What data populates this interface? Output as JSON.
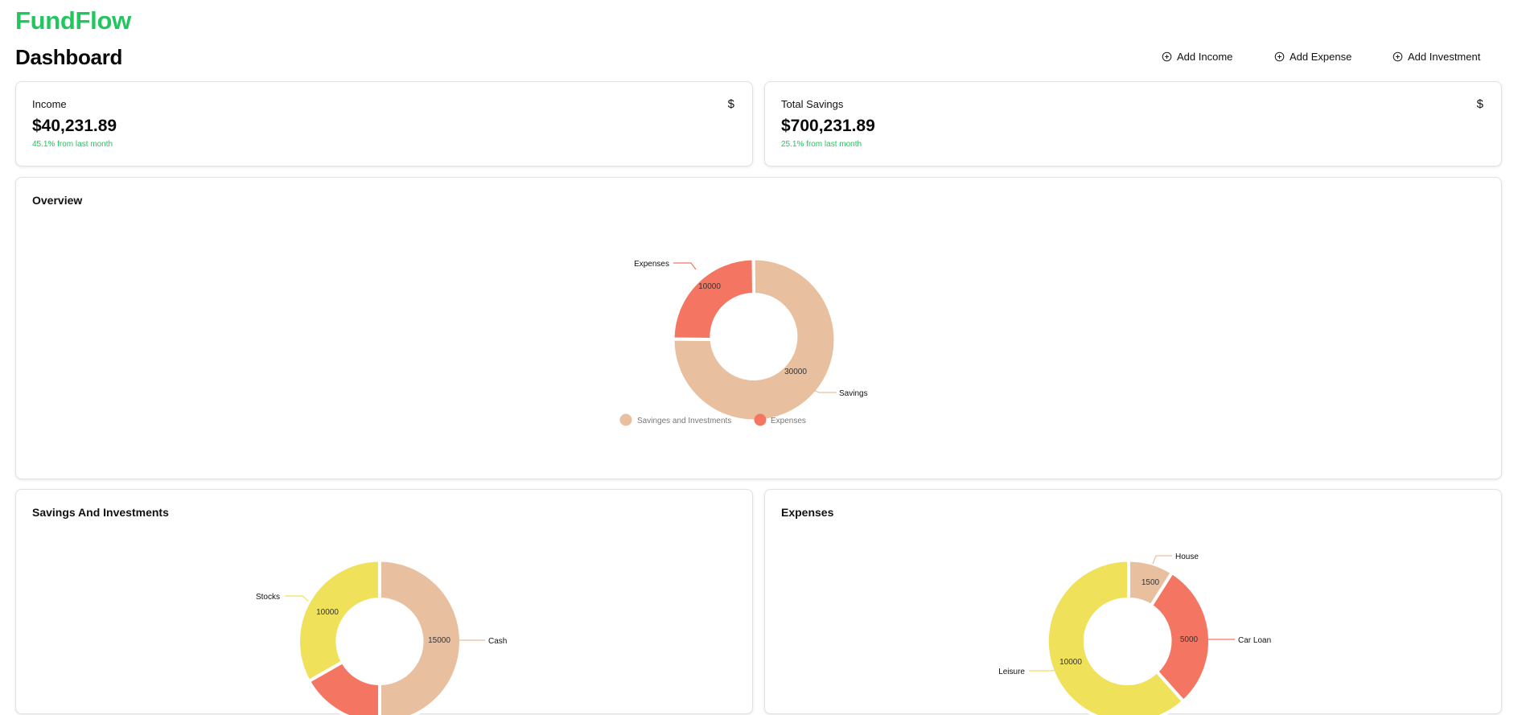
{
  "app": {
    "brand": "FundFlow"
  },
  "header": {
    "title": "Dashboard",
    "actions": [
      {
        "label": "Add Income",
        "icon": "plus-circle-icon"
      },
      {
        "label": "Add Expense",
        "icon": "plus-circle-icon"
      },
      {
        "label": "Add Investment",
        "icon": "plus-circle-icon"
      }
    ]
  },
  "stats": {
    "income": {
      "label": "Income",
      "currency": "$",
      "value": "$40,231.89",
      "change": "45.1% from last month"
    },
    "savings": {
      "label": "Total Savings",
      "currency": "$",
      "value": "$700,231.89",
      "change": "25.1% from last month"
    }
  },
  "colors": {
    "brand": "#22c55e",
    "tan": "#e8c09f",
    "coral": "#f47662",
    "yellow": "#f0e15a"
  },
  "cards": {
    "overview": {
      "title": "Overview"
    },
    "savings": {
      "title": "Savings And Investments"
    },
    "expenses": {
      "title": "Expenses"
    }
  },
  "chart_data": [
    {
      "type": "pie",
      "title": "Overview",
      "categories": [
        "Savings",
        "Expenses"
      ],
      "values": [
        30000,
        10000
      ],
      "legend": [
        "Savinges and Investments",
        "Expenses"
      ],
      "legend_position": "bottom"
    },
    {
      "type": "pie",
      "title": "Savings And Investments",
      "categories": [
        "Cash",
        "Stocks"
      ],
      "values": [
        15000,
        10000
      ]
    },
    {
      "type": "pie",
      "title": "Expenses",
      "categories": [
        "House",
        "Car Loan",
        "Leisure"
      ],
      "values": [
        1500,
        5000,
        10000
      ]
    }
  ]
}
